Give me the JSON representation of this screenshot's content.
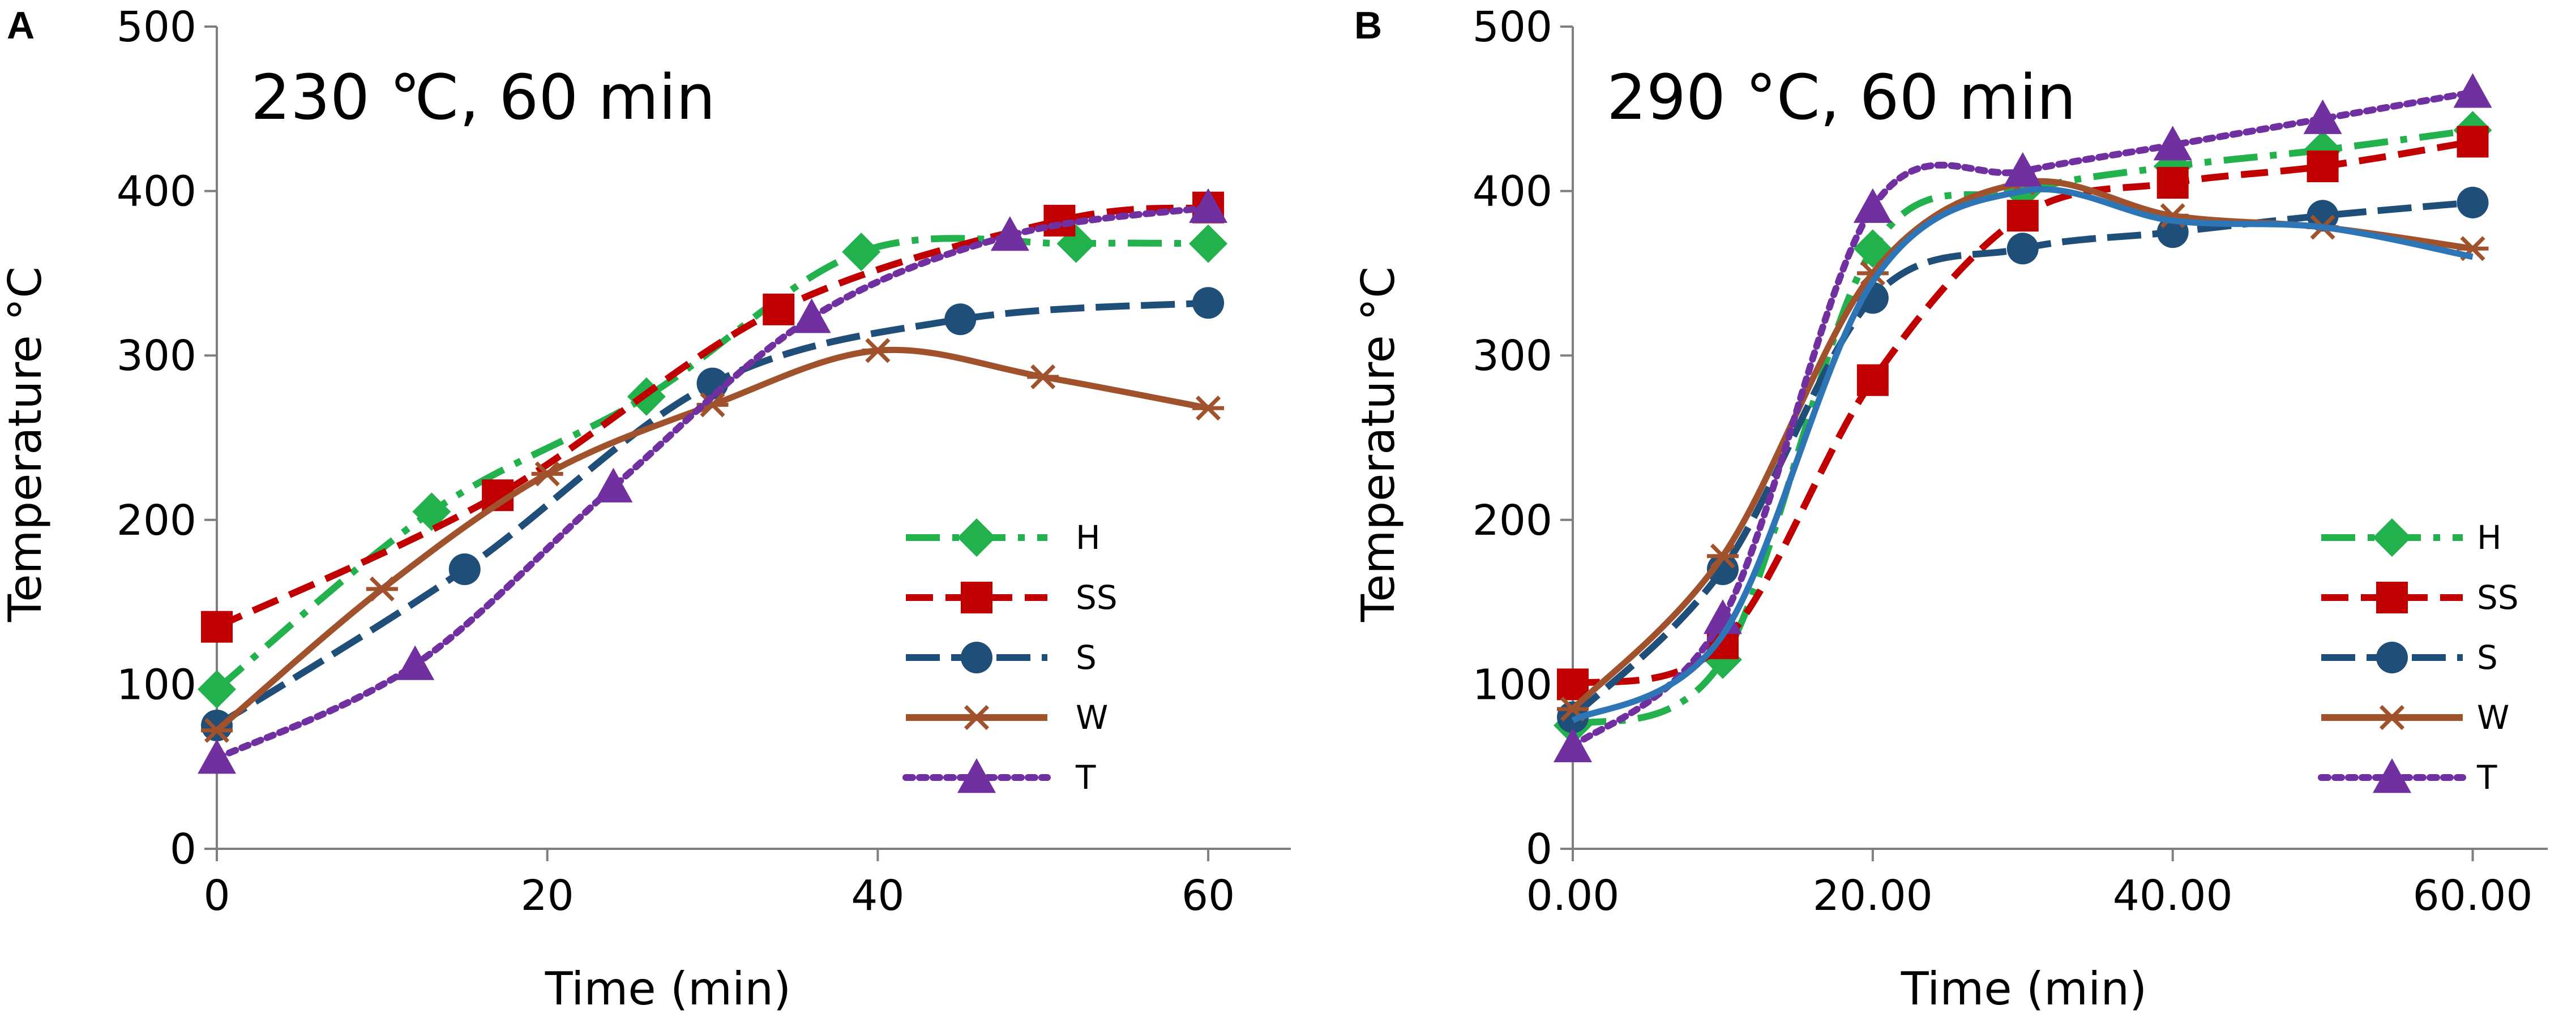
{
  "figure": {
    "colors": {
      "H": "#22b14c",
      "SS": "#c00000",
      "S": "#1f4e79",
      "W": "#a0522d",
      "T": "#7030a0",
      "blue_curve": "#2e75b6",
      "axis": "#7f7f7f",
      "text": "#000000"
    }
  },
  "chart_data": [
    {
      "type": "line",
      "panel": "A",
      "title": "230 ℃, 60 min",
      "xlabel": "Time (min)",
      "ylabel": "Temperature °C",
      "xlim": [
        0,
        65
      ],
      "ylim": [
        0,
        500
      ],
      "xticks": [
        0,
        20,
        40,
        60
      ],
      "xtick_labels": [
        "0",
        "20",
        "40",
        "60"
      ],
      "yticks": [
        0,
        100,
        200,
        300,
        400,
        500
      ],
      "ytick_labels": [
        "0",
        "100",
        "200",
        "300",
        "400",
        "500"
      ],
      "grid": false,
      "legend_position": "bottom-right",
      "legend": [
        "H",
        "SS",
        "S",
        "W",
        "T"
      ],
      "series": [
        {
          "name": "H",
          "style": "dash-dot",
          "marker": "diamond",
          "x": [
            0,
            13,
            26,
            39,
            52,
            60
          ],
          "y": [
            97,
            205,
            275,
            363,
            368,
            368
          ]
        },
        {
          "name": "SS",
          "style": "dashed",
          "marker": "square",
          "x": [
            0,
            17,
            34,
            51,
            60
          ],
          "y": [
            135,
            215,
            328,
            382,
            390
          ]
        },
        {
          "name": "S",
          "style": "long-dash",
          "marker": "circle",
          "x": [
            0,
            15,
            30,
            45,
            60
          ],
          "y": [
            75,
            170,
            283,
            322,
            332
          ]
        },
        {
          "name": "W",
          "style": "solid",
          "marker": "asterisk",
          "x": [
            0,
            10,
            20,
            30,
            40,
            50,
            60
          ],
          "y": [
            72,
            158,
            228,
            270,
            303,
            287,
            268
          ]
        },
        {
          "name": "T",
          "style": "dotted",
          "marker": "triangle",
          "x": [
            0,
            12,
            24,
            36,
            48,
            60
          ],
          "y": [
            55,
            112,
            220,
            323,
            373,
            390
          ]
        }
      ]
    },
    {
      "type": "line",
      "panel": "B",
      "title": "290 °C, 60 min",
      "xlabel": "Time (min)",
      "ylabel": "Temperature °C",
      "xlim": [
        0,
        65
      ],
      "ylim": [
        0,
        500
      ],
      "xticks": [
        0,
        20,
        40,
        60
      ],
      "xtick_labels": [
        "0.00",
        "20.00",
        "40.00",
        "60.00"
      ],
      "yticks": [
        0,
        100,
        200,
        300,
        400,
        500
      ],
      "ytick_labels": [
        "0",
        "100",
        "200",
        "300",
        "400",
        "500"
      ],
      "grid": false,
      "legend_position": "bottom-right",
      "legend": [
        "H",
        "SS",
        "S",
        "W",
        "T"
      ],
      "series": [
        {
          "name": "H",
          "style": "dash-dot",
          "marker": "diamond",
          "x": [
            0,
            10,
            20,
            30,
            40,
            50,
            60
          ],
          "y": [
            75,
            115,
            365,
            400,
            415,
            425,
            437
          ]
        },
        {
          "name": "SS",
          "style": "dashed",
          "marker": "square",
          "x": [
            0,
            10,
            20,
            30,
            40,
            50,
            60
          ],
          "y": [
            100,
            125,
            285,
            385,
            405,
            415,
            430
          ]
        },
        {
          "name": "S",
          "style": "long-dash",
          "marker": "circle",
          "x": [
            0,
            10,
            20,
            30,
            40,
            50,
            60
          ],
          "y": [
            80,
            170,
            335,
            365,
            375,
            385,
            393
          ]
        },
        {
          "name": "W",
          "style": "solid",
          "marker": "asterisk",
          "x": [
            0,
            10,
            20,
            30,
            40,
            50,
            60
          ],
          "y": [
            85,
            178,
            350,
            405,
            385,
            378,
            365
          ]
        },
        {
          "name": "T",
          "style": "dotted",
          "marker": "triangle",
          "x": [
            0,
            10,
            20,
            30,
            40,
            50,
            60
          ],
          "y": [
            62,
            140,
            390,
            412,
            428,
            444,
            460
          ]
        },
        {
          "name": "",
          "style": "solid",
          "marker": "none",
          "color_key": "blue_curve",
          "legend": false,
          "x": [
            0,
            10,
            20,
            30,
            40,
            50,
            60
          ],
          "y": [
            78,
            130,
            345,
            400,
            382,
            378,
            360
          ]
        }
      ]
    }
  ]
}
